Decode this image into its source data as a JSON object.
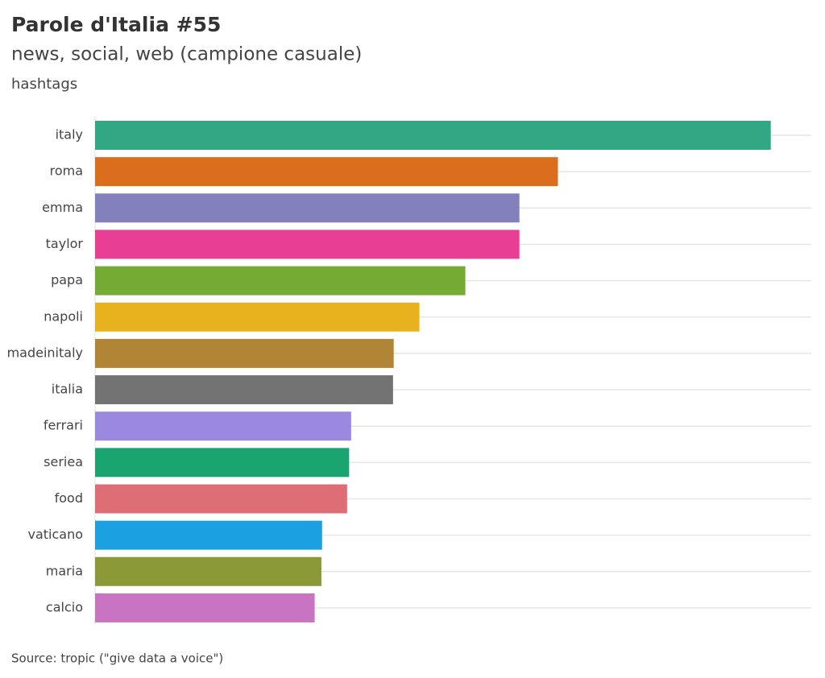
{
  "chart_data": {
    "type": "bar",
    "orientation": "horizontal",
    "title": "Parole d'Italia #55",
    "subtitle": "news, social, web (campione casuale)",
    "axis_label": "hashtags",
    "source": "Source: tropic (\"give data a voice\")",
    "categories": [
      "italy",
      "roma",
      "emma",
      "taylor",
      "papa",
      "napoli",
      "madeinitaly",
      "italia",
      "ferrari",
      "seriea",
      "food",
      "vaticano",
      "maria",
      "calcio"
    ],
    "values": [
      100,
      68.5,
      62.8,
      62.8,
      54.8,
      48.0,
      44.2,
      44.1,
      37.9,
      37.6,
      37.3,
      33.6,
      33.5,
      32.5
    ],
    "colors": [
      "#31a784",
      "#db6e1d",
      "#8380bb",
      "#e83e94",
      "#75ab34",
      "#e8b21e",
      "#b08535",
      "#737373",
      "#9b88df",
      "#19a470",
      "#dd6e75",
      "#1ba0e1",
      "#8c9937",
      "#c874c2"
    ],
    "xlim": [
      0,
      106
    ],
    "grid": true
  }
}
